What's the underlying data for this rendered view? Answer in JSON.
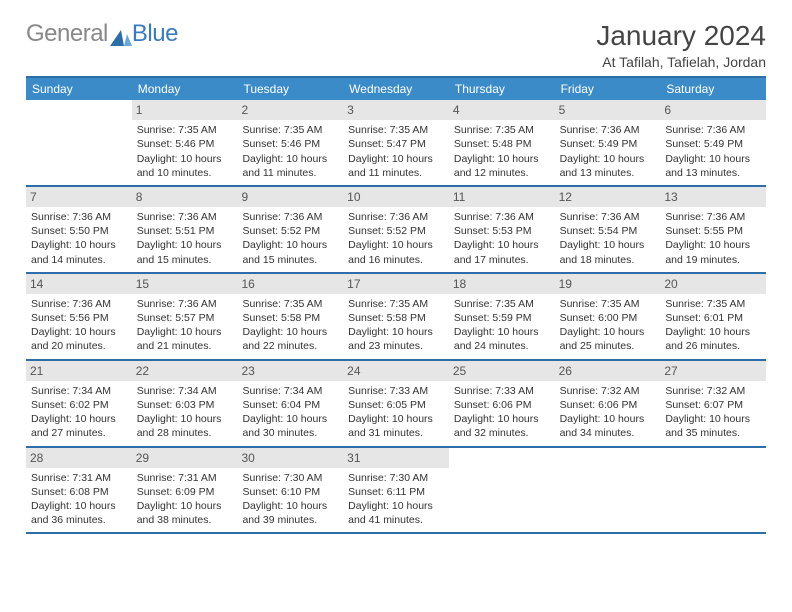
{
  "logo": {
    "generalText": "General",
    "blueText": "Blue"
  },
  "title": "January 2024",
  "location": "At Tafilah, Tafielah, Jordan",
  "colors": {
    "headerBg": "#3b8bc9",
    "ruleColor": "#2e6ea8",
    "dayNumBg": "#e6e6e6",
    "textColor": "#333333"
  },
  "weekdays": [
    "Sunday",
    "Monday",
    "Tuesday",
    "Wednesday",
    "Thursday",
    "Friday",
    "Saturday"
  ],
  "weeks": [
    [
      {
        "day": "",
        "sunrise": "",
        "sunset": "",
        "daylight1": "",
        "daylight2": ""
      },
      {
        "day": "1",
        "sunrise": "Sunrise: 7:35 AM",
        "sunset": "Sunset: 5:46 PM",
        "daylight1": "Daylight: 10 hours",
        "daylight2": "and 10 minutes."
      },
      {
        "day": "2",
        "sunrise": "Sunrise: 7:35 AM",
        "sunset": "Sunset: 5:46 PM",
        "daylight1": "Daylight: 10 hours",
        "daylight2": "and 11 minutes."
      },
      {
        "day": "3",
        "sunrise": "Sunrise: 7:35 AM",
        "sunset": "Sunset: 5:47 PM",
        "daylight1": "Daylight: 10 hours",
        "daylight2": "and 11 minutes."
      },
      {
        "day": "4",
        "sunrise": "Sunrise: 7:35 AM",
        "sunset": "Sunset: 5:48 PM",
        "daylight1": "Daylight: 10 hours",
        "daylight2": "and 12 minutes."
      },
      {
        "day": "5",
        "sunrise": "Sunrise: 7:36 AM",
        "sunset": "Sunset: 5:49 PM",
        "daylight1": "Daylight: 10 hours",
        "daylight2": "and 13 minutes."
      },
      {
        "day": "6",
        "sunrise": "Sunrise: 7:36 AM",
        "sunset": "Sunset: 5:49 PM",
        "daylight1": "Daylight: 10 hours",
        "daylight2": "and 13 minutes."
      }
    ],
    [
      {
        "day": "7",
        "sunrise": "Sunrise: 7:36 AM",
        "sunset": "Sunset: 5:50 PM",
        "daylight1": "Daylight: 10 hours",
        "daylight2": "and 14 minutes."
      },
      {
        "day": "8",
        "sunrise": "Sunrise: 7:36 AM",
        "sunset": "Sunset: 5:51 PM",
        "daylight1": "Daylight: 10 hours",
        "daylight2": "and 15 minutes."
      },
      {
        "day": "9",
        "sunrise": "Sunrise: 7:36 AM",
        "sunset": "Sunset: 5:52 PM",
        "daylight1": "Daylight: 10 hours",
        "daylight2": "and 15 minutes."
      },
      {
        "day": "10",
        "sunrise": "Sunrise: 7:36 AM",
        "sunset": "Sunset: 5:52 PM",
        "daylight1": "Daylight: 10 hours",
        "daylight2": "and 16 minutes."
      },
      {
        "day": "11",
        "sunrise": "Sunrise: 7:36 AM",
        "sunset": "Sunset: 5:53 PM",
        "daylight1": "Daylight: 10 hours",
        "daylight2": "and 17 minutes."
      },
      {
        "day": "12",
        "sunrise": "Sunrise: 7:36 AM",
        "sunset": "Sunset: 5:54 PM",
        "daylight1": "Daylight: 10 hours",
        "daylight2": "and 18 minutes."
      },
      {
        "day": "13",
        "sunrise": "Sunrise: 7:36 AM",
        "sunset": "Sunset: 5:55 PM",
        "daylight1": "Daylight: 10 hours",
        "daylight2": "and 19 minutes."
      }
    ],
    [
      {
        "day": "14",
        "sunrise": "Sunrise: 7:36 AM",
        "sunset": "Sunset: 5:56 PM",
        "daylight1": "Daylight: 10 hours",
        "daylight2": "and 20 minutes."
      },
      {
        "day": "15",
        "sunrise": "Sunrise: 7:36 AM",
        "sunset": "Sunset: 5:57 PM",
        "daylight1": "Daylight: 10 hours",
        "daylight2": "and 21 minutes."
      },
      {
        "day": "16",
        "sunrise": "Sunrise: 7:35 AM",
        "sunset": "Sunset: 5:58 PM",
        "daylight1": "Daylight: 10 hours",
        "daylight2": "and 22 minutes."
      },
      {
        "day": "17",
        "sunrise": "Sunrise: 7:35 AM",
        "sunset": "Sunset: 5:58 PM",
        "daylight1": "Daylight: 10 hours",
        "daylight2": "and 23 minutes."
      },
      {
        "day": "18",
        "sunrise": "Sunrise: 7:35 AM",
        "sunset": "Sunset: 5:59 PM",
        "daylight1": "Daylight: 10 hours",
        "daylight2": "and 24 minutes."
      },
      {
        "day": "19",
        "sunrise": "Sunrise: 7:35 AM",
        "sunset": "Sunset: 6:00 PM",
        "daylight1": "Daylight: 10 hours",
        "daylight2": "and 25 minutes."
      },
      {
        "day": "20",
        "sunrise": "Sunrise: 7:35 AM",
        "sunset": "Sunset: 6:01 PM",
        "daylight1": "Daylight: 10 hours",
        "daylight2": "and 26 minutes."
      }
    ],
    [
      {
        "day": "21",
        "sunrise": "Sunrise: 7:34 AM",
        "sunset": "Sunset: 6:02 PM",
        "daylight1": "Daylight: 10 hours",
        "daylight2": "and 27 minutes."
      },
      {
        "day": "22",
        "sunrise": "Sunrise: 7:34 AM",
        "sunset": "Sunset: 6:03 PM",
        "daylight1": "Daylight: 10 hours",
        "daylight2": "and 28 minutes."
      },
      {
        "day": "23",
        "sunrise": "Sunrise: 7:34 AM",
        "sunset": "Sunset: 6:04 PM",
        "daylight1": "Daylight: 10 hours",
        "daylight2": "and 30 minutes."
      },
      {
        "day": "24",
        "sunrise": "Sunrise: 7:33 AM",
        "sunset": "Sunset: 6:05 PM",
        "daylight1": "Daylight: 10 hours",
        "daylight2": "and 31 minutes."
      },
      {
        "day": "25",
        "sunrise": "Sunrise: 7:33 AM",
        "sunset": "Sunset: 6:06 PM",
        "daylight1": "Daylight: 10 hours",
        "daylight2": "and 32 minutes."
      },
      {
        "day": "26",
        "sunrise": "Sunrise: 7:32 AM",
        "sunset": "Sunset: 6:06 PM",
        "daylight1": "Daylight: 10 hours",
        "daylight2": "and 34 minutes."
      },
      {
        "day": "27",
        "sunrise": "Sunrise: 7:32 AM",
        "sunset": "Sunset: 6:07 PM",
        "daylight1": "Daylight: 10 hours",
        "daylight2": "and 35 minutes."
      }
    ],
    [
      {
        "day": "28",
        "sunrise": "Sunrise: 7:31 AM",
        "sunset": "Sunset: 6:08 PM",
        "daylight1": "Daylight: 10 hours",
        "daylight2": "and 36 minutes."
      },
      {
        "day": "29",
        "sunrise": "Sunrise: 7:31 AM",
        "sunset": "Sunset: 6:09 PM",
        "daylight1": "Daylight: 10 hours",
        "daylight2": "and 38 minutes."
      },
      {
        "day": "30",
        "sunrise": "Sunrise: 7:30 AM",
        "sunset": "Sunset: 6:10 PM",
        "daylight1": "Daylight: 10 hours",
        "daylight2": "and 39 minutes."
      },
      {
        "day": "31",
        "sunrise": "Sunrise: 7:30 AM",
        "sunset": "Sunset: 6:11 PM",
        "daylight1": "Daylight: 10 hours",
        "daylight2": "and 41 minutes."
      },
      {
        "day": "",
        "sunrise": "",
        "sunset": "",
        "daylight1": "",
        "daylight2": ""
      },
      {
        "day": "",
        "sunrise": "",
        "sunset": "",
        "daylight1": "",
        "daylight2": ""
      },
      {
        "day": "",
        "sunrise": "",
        "sunset": "",
        "daylight1": "",
        "daylight2": ""
      }
    ]
  ]
}
